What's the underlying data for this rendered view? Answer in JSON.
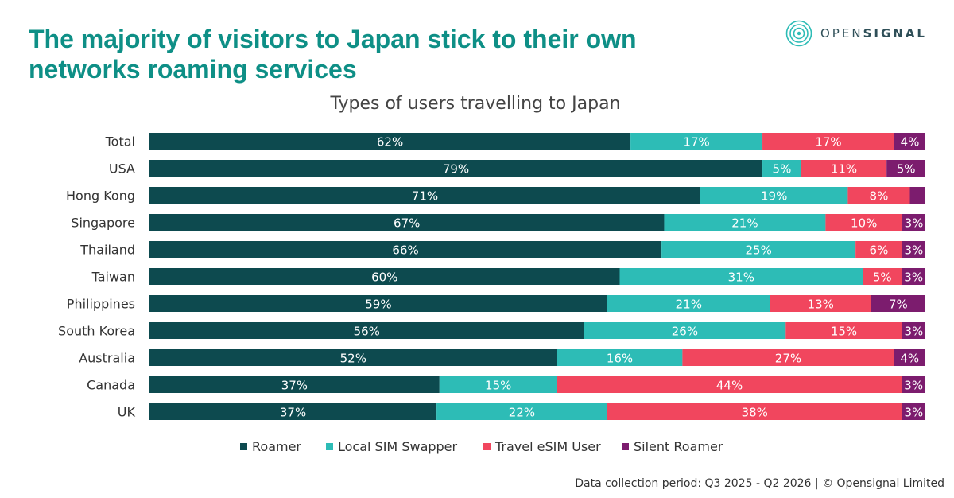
{
  "header": {
    "title_line1": "The majority of visitors to Japan stick to their own",
    "title_line2": "networks roaming services"
  },
  "brand": {
    "name_light": "OPEN",
    "name_bold": "SIGNAL",
    "logo_icon": "opensignal-ripple-icon"
  },
  "footer": {
    "note": "Data collection period: Q3 2025 - Q2 2026  |  © Opensignal Limited"
  },
  "chart_data": {
    "type": "bar",
    "orientation": "horizontal",
    "stacked": true,
    "title": "Types of users travelling to Japan",
    "xlabel": "",
    "ylabel": "",
    "xlim": [
      0,
      100
    ],
    "grid": false,
    "legend_position": "bottom",
    "categories": [
      "Total",
      "USA",
      "Hong Kong",
      "Singapore",
      "Thailand",
      "Taiwan",
      "Philippines",
      "South Korea",
      "Australia",
      "Canada",
      "UK"
    ],
    "series": [
      {
        "name": "Roamer",
        "color": "#0d4a4f",
        "values": [
          62,
          79,
          71,
          67,
          66,
          60,
          59,
          56,
          52,
          37,
          37
        ],
        "labels": [
          "62%",
          "79%",
          "71%",
          "67%",
          "66%",
          "60%",
          "59%",
          "56%",
          "52%",
          "37%",
          "37%"
        ]
      },
      {
        "name": "Local SIM Swapper",
        "color": "#2dbcb6",
        "values": [
          17,
          5,
          19,
          21,
          25,
          31,
          21,
          26,
          16,
          15,
          22
        ],
        "labels": [
          "17%",
          "5%",
          "19%",
          "21%",
          "25%",
          "31%",
          "21%",
          "26%",
          "16%",
          "15%",
          "22%"
        ]
      },
      {
        "name": "Travel eSIM User",
        "color": "#f1465e",
        "values": [
          17,
          11,
          8,
          10,
          6,
          5,
          13,
          15,
          27,
          44,
          38
        ],
        "labels": [
          "17%",
          "11%",
          "8%",
          "10%",
          "6%",
          "5%",
          "13%",
          "15%",
          "27%",
          "44%",
          "38%"
        ]
      },
      {
        "name": "Silent Roamer",
        "color": "#7c1c6e",
        "values": [
          4,
          5,
          2,
          3,
          3,
          3,
          7,
          3,
          4,
          3,
          3
        ],
        "labels": [
          "4%",
          "5%",
          "",
          "3%",
          "3%",
          "3%",
          "7%",
          "3%",
          "4%",
          "3%",
          "3%"
        ]
      }
    ]
  }
}
